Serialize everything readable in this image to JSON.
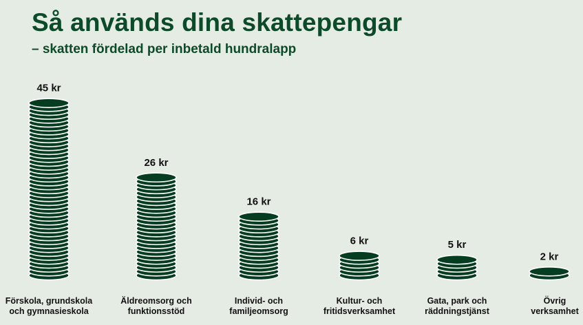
{
  "title": "Så används dina skattepengar",
  "subtitle": "– skatten fördelad per inbetald hundralapp",
  "colors": {
    "background": "#e5ece3",
    "coin": "#063d20",
    "coin_edge": "#ffffff",
    "title": "#0d4a2a"
  },
  "chart_data": {
    "type": "bar",
    "title": "Så används dina skattepengar",
    "subtitle": "– skatten fördelad per inbetald hundralapp",
    "unit": "kr",
    "categories": [
      [
        "Förskola, grundskola",
        "och gymnasieskola"
      ],
      [
        "Äldreomsorg och",
        "funktionsstöd"
      ],
      [
        "Individ- och",
        "familjeomsorg"
      ],
      [
        "Kultur- och",
        "fritidsverksamhet"
      ],
      [
        "Gata, park och",
        "räddningstjänst"
      ],
      [
        "Övrig",
        "verksamhet"
      ]
    ],
    "values": [
      45,
      26,
      16,
      6,
      5,
      2
    ],
    "value_labels": [
      "45 kr",
      "26 kr",
      "16 kr",
      "6 kr",
      "5 kr",
      "2 kr"
    ],
    "xlabel": "",
    "ylabel": "",
    "grid": false,
    "legend": "none"
  }
}
